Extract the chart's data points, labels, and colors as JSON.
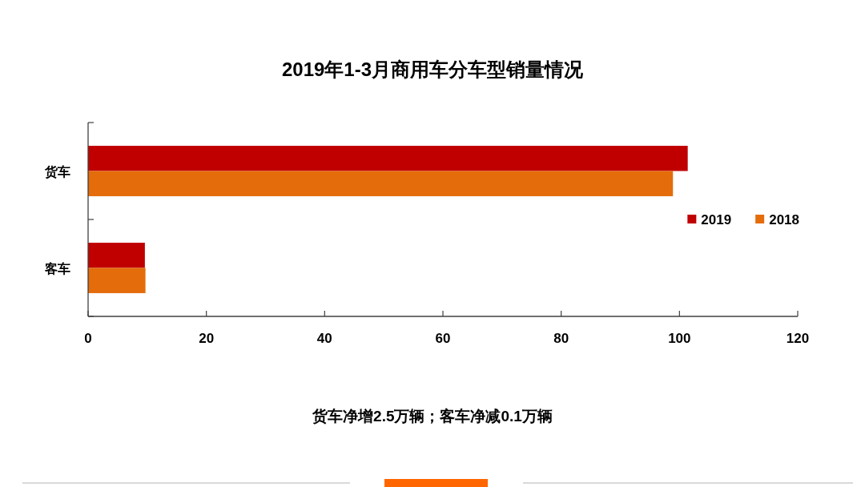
{
  "chart_data": {
    "type": "bar",
    "orientation": "horizontal",
    "title": "2019年1-3月商用车分车型销量情况",
    "categories": [
      "货车",
      "客车"
    ],
    "series": [
      {
        "name": "2019",
        "color": "#c00000",
        "values": [
          101.4,
          9.6
        ]
      },
      {
        "name": "2018",
        "color": "#e46c0a",
        "values": [
          98.9,
          9.7
        ]
      }
    ],
    "xlim": [
      0,
      120
    ],
    "xticks": [
      0,
      20,
      40,
      60,
      80,
      100,
      120
    ],
    "grid": false,
    "legend": "right",
    "annotations": [
      "货车净增2.5万辆；客车净减0.1万辆"
    ]
  }
}
